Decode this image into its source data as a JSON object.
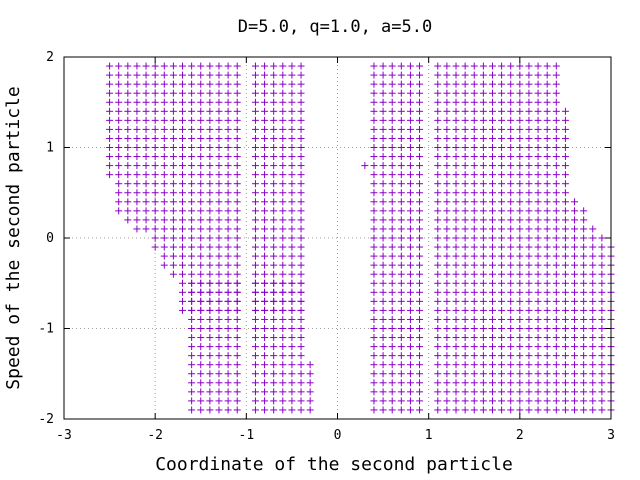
{
  "chart_data": {
    "type": "scatter",
    "title": "D=5.0, q=1.0, a=5.0",
    "xlabel": "Coordinate of the second particle",
    "ylabel": "Speed of the second particle",
    "xlim": [
      -3,
      3
    ],
    "ylim": [
      -2,
      2
    ],
    "xticks": [
      "-3",
      "-2",
      "-1",
      "0",
      "1",
      "2",
      "3"
    ],
    "yticks": [
      "-2",
      "-1",
      "0",
      "1",
      "2"
    ],
    "grid": true,
    "marker": "plus",
    "color": "#8a00c8",
    "grid_step": {
      "dx": 0.1,
      "dy": 0.1
    },
    "regions": [
      {
        "name": "left",
        "x_from": -2.5,
        "x_to": -0.3,
        "x_gaps": [
          [
            -1.05,
            -0.95
          ]
        ],
        "rows": [
          {
            "y_from": -1.9,
            "y_to": -1.4,
            "x_min": -1.6,
            "x_max": -0.3
          },
          {
            "y_from": -1.3,
            "y_to": -0.5,
            "x_min": -1.6,
            "x_max": -0.4
          },
          {
            "y_from": -0.8,
            "y_to": -0.5,
            "x_min": -1.7,
            "x_max": -0.4
          },
          {
            "y_from": -0.4,
            "y_to": -0.4,
            "x_min": -1.8,
            "x_max": -0.4
          },
          {
            "y_from": -0.3,
            "y_to": -0.2,
            "x_min": -1.9,
            "x_max": -0.4
          },
          {
            "y_from": -0.1,
            "y_to": 0.0,
            "x_min": -2.0,
            "x_max": -0.4
          },
          {
            "y_from": 0.1,
            "y_to": 0.1,
            "x_min": -2.2,
            "x_max": -0.4
          },
          {
            "y_from": 0.2,
            "y_to": 0.2,
            "x_min": -2.3,
            "x_max": -0.4
          },
          {
            "y_from": 0.3,
            "y_to": 0.3,
            "x_min": -2.4,
            "x_max": -0.4
          },
          {
            "y_from": 0.4,
            "y_to": 0.6,
            "x_min": -2.4,
            "x_max": -0.4
          },
          {
            "y_from": 0.7,
            "y_to": 0.7,
            "x_min": -2.5,
            "x_max": -0.4
          },
          {
            "y_from": 0.8,
            "y_to": 1.9,
            "x_min": -2.5,
            "x_max": -0.4
          }
        ]
      },
      {
        "name": "right",
        "x_from": 0.3,
        "x_to": 3.0,
        "x_gaps": [
          [
            0.95,
            1.05
          ]
        ],
        "rows": [
          {
            "y_from": -1.9,
            "y_to": -0.6,
            "x_min": 0.4,
            "x_max": 3.0
          },
          {
            "y_from": -0.5,
            "y_to": -0.1,
            "x_min": 0.4,
            "x_max": 3.0
          },
          {
            "y_from": 0.0,
            "y_to": 0.0,
            "x_min": 0.4,
            "x_max": 2.9
          },
          {
            "y_from": 0.1,
            "y_to": 0.1,
            "x_min": 0.4,
            "x_max": 2.8
          },
          {
            "y_from": 0.2,
            "y_to": 0.3,
            "x_min": 0.4,
            "x_max": 2.7
          },
          {
            "y_from": 0.4,
            "y_to": 0.4,
            "x_min": 0.4,
            "x_max": 2.6
          },
          {
            "y_from": 0.5,
            "y_to": 1.4,
            "x_min": 0.4,
            "x_max": 2.5
          },
          {
            "y_from": 1.5,
            "y_to": 1.9,
            "x_min": 0.4,
            "x_max": 2.4
          }
        ],
        "extra_points": [
          [
            0.3,
            0.8
          ]
        ]
      }
    ]
  }
}
